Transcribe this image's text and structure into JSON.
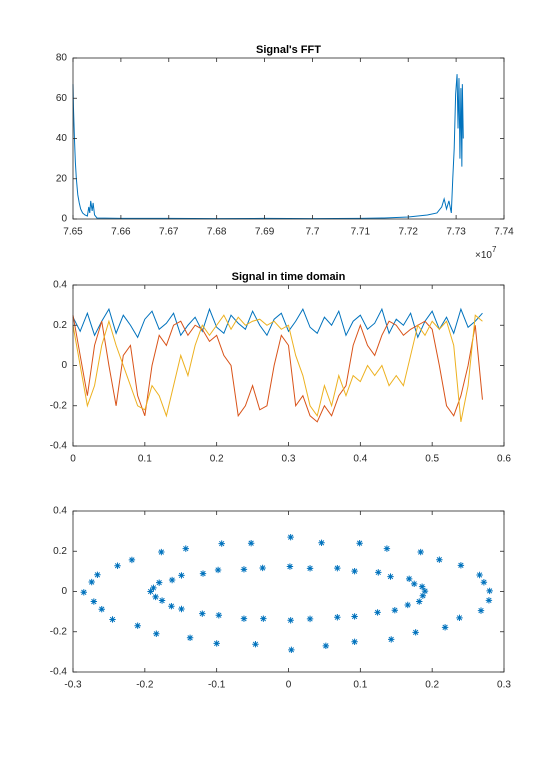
{
  "chart_data": [
    {
      "type": "line",
      "title": "Signal's FFT",
      "xlim": [
        7.65,
        7.74
      ],
      "xticks": [
        7.65,
        7.66,
        7.67,
        7.68,
        7.69,
        7.7,
        7.71,
        7.72,
        7.73,
        7.74
      ],
      "ylim": [
        0,
        80
      ],
      "yticks": [
        0,
        20,
        40,
        60,
        80
      ],
      "x_exponent": {
        "base": "×10",
        "exponent": "7"
      },
      "x": [
        7.65,
        7.6501,
        7.6503,
        7.6505,
        7.6507,
        7.651,
        7.6513,
        7.6516,
        7.652,
        7.6525,
        7.653,
        7.6533,
        7.6535,
        7.6537,
        7.654,
        7.6542,
        7.6545,
        7.655,
        7.66,
        7.67,
        7.68,
        7.69,
        7.7,
        7.71,
        7.715,
        7.72,
        7.722,
        7.724,
        7.726,
        7.727,
        7.7275,
        7.728,
        7.7285,
        7.729,
        7.7293,
        7.7296,
        7.7299,
        7.7302,
        7.7304,
        7.7306,
        7.7308,
        7.731,
        7.7312,
        7.7313,
        7.7315
      ],
      "series": [
        {
          "color": "#0072BD",
          "values": [
            67,
            55,
            40,
            28,
            20,
            12,
            8,
            5,
            3,
            2,
            1.5,
            6,
            3,
            9,
            4,
            8,
            2,
            0.5,
            0.3,
            0.3,
            0.2,
            0.3,
            0.2,
            0.3,
            0.5,
            1,
            1.5,
            2,
            3,
            6,
            10,
            5,
            9,
            3,
            20,
            35,
            62,
            72,
            45,
            70,
            30,
            65,
            26,
            67,
            40
          ]
        }
      ]
    },
    {
      "type": "line",
      "title": "Signal in time domain",
      "xlim": [
        0,
        0.6
      ],
      "xticks": [
        0,
        0.1,
        0.2,
        0.3,
        0.4,
        0.5,
        0.6
      ],
      "ylim": [
        -0.4,
        0.4
      ],
      "yticks": [
        -0.4,
        -0.2,
        0,
        0.2,
        0.4
      ],
      "x": [
        0,
        0.01,
        0.02,
        0.03,
        0.04,
        0.05,
        0.06,
        0.07,
        0.08,
        0.09,
        0.1,
        0.11,
        0.12,
        0.13,
        0.14,
        0.15,
        0.16,
        0.17,
        0.18,
        0.19,
        0.2,
        0.21,
        0.22,
        0.23,
        0.24,
        0.25,
        0.26,
        0.27,
        0.28,
        0.29,
        0.3,
        0.31,
        0.32,
        0.33,
        0.34,
        0.35,
        0.36,
        0.37,
        0.38,
        0.39,
        0.4,
        0.41,
        0.42,
        0.43,
        0.44,
        0.45,
        0.46,
        0.47,
        0.48,
        0.49,
        0.5,
        0.51,
        0.52,
        0.53,
        0.54,
        0.55,
        0.56,
        0.57
      ],
      "series": [
        {
          "color": "#0072BD",
          "values": [
            0.24,
            0.17,
            0.26,
            0.15,
            0.22,
            0.28,
            0.16,
            0.25,
            0.2,
            0.14,
            0.23,
            0.27,
            0.18,
            0.21,
            0.26,
            0.15,
            0.2,
            0.24,
            0.17,
            0.28,
            0.19,
            0.16,
            0.25,
            0.21,
            0.18,
            0.27,
            0.2,
            0.15,
            0.23,
            0.26,
            0.17,
            0.22,
            0.28,
            0.19,
            0.16,
            0.24,
            0.2,
            0.27,
            0.15,
            0.22,
            0.25,
            0.18,
            0.21,
            0.28,
            0.16,
            0.23,
            0.2,
            0.26,
            0.14,
            0.22,
            0.27,
            0.18,
            0.24,
            0.16,
            0.28,
            0.19,
            0.22,
            0.26
          ]
        },
        {
          "color": "#D95319",
          "values": [
            0.25,
            0.05,
            -0.15,
            0.1,
            0.22,
            0.0,
            -0.2,
            0.05,
            0.1,
            -0.15,
            -0.25,
            0.0,
            0.15,
            0.1,
            0.2,
            0.22,
            0.15,
            0.2,
            0.18,
            0.12,
            0.15,
            0.05,
            0.0,
            -0.25,
            -0.2,
            -0.1,
            -0.22,
            -0.2,
            0.0,
            0.15,
            0.1,
            -0.2,
            -0.15,
            -0.25,
            -0.28,
            -0.2,
            -0.25,
            -0.15,
            -0.1,
            0.1,
            0.2,
            0.1,
            0.05,
            0.15,
            0.22,
            0.2,
            0.15,
            0.18,
            0.2,
            0.22,
            0.18,
            0.0,
            -0.2,
            -0.25,
            -0.15,
            0.0,
            0.2,
            -0.17
          ]
        },
        {
          "color": "#EDB120",
          "values": [
            0.2,
            0.0,
            -0.2,
            -0.1,
            0.1,
            0.22,
            0.1,
            0.0,
            -0.1,
            -0.2,
            -0.22,
            -0.1,
            -0.15,
            -0.25,
            -0.1,
            0.05,
            -0.05,
            0.1,
            0.2,
            0.15,
            0.2,
            0.25,
            0.18,
            0.24,
            0.2,
            0.22,
            0.23,
            0.2,
            0.22,
            0.18,
            0.2,
            0.05,
            -0.05,
            -0.2,
            -0.25,
            -0.1,
            -0.2,
            -0.05,
            -0.15,
            -0.05,
            -0.08,
            0.0,
            -0.05,
            0.0,
            -0.1,
            -0.05,
            -0.1,
            0.05,
            0.2,
            0.15,
            0.22,
            0.18,
            0.22,
            0.1,
            -0.28,
            -0.1,
            0.25,
            0.22
          ]
        }
      ]
    },
    {
      "type": "scatter",
      "xlim": [
        -0.3,
        0.3
      ],
      "xticks": [
        -0.3,
        -0.2,
        -0.1,
        0,
        0.1,
        0.2,
        0.3
      ],
      "ylim": [
        -0.4,
        0.4
      ],
      "yticks": [
        -0.4,
        -0.2,
        0,
        0.2,
        0.4
      ],
      "color": "#0072BD",
      "x": [
        0.28,
        0.272,
        0.266,
        0.24,
        0.21,
        0.184,
        0.137,
        0.099,
        0.046,
        0.003,
        -0.052,
        -0.093,
        -0.143,
        -0.177,
        -0.218,
        -0.238,
        -0.266,
        -0.274,
        -0.285,
        -0.271,
        -0.26,
        -0.245,
        -0.21,
        -0.184,
        -0.137,
        -0.1,
        -0.046,
        0.004,
        0.052,
        0.092,
        0.143,
        0.177,
        0.218,
        0.238,
        0.268,
        0.279,
        0.19,
        0.186,
        0.175,
        0.168,
        0.142,
        0.125,
        0.092,
        0.068,
        0.03,
        0.002,
        -0.036,
        -0.062,
        -0.098,
        -0.119,
        -0.149,
        -0.162,
        -0.18,
        -0.188,
        -0.192,
        -0.185,
        -0.176,
        -0.163,
        -0.149,
        -0.12,
        -0.097,
        -0.062,
        -0.035,
        0.003,
        0.03,
        0.068,
        0.092,
        0.124,
        0.148,
        0.166,
        0.182,
        0.187
      ],
      "y": [
        0.003,
        0.046,
        0.082,
        0.13,
        0.158,
        0.196,
        0.213,
        0.24,
        0.242,
        0.27,
        0.24,
        0.238,
        0.213,
        0.196,
        0.157,
        0.128,
        0.083,
        0.047,
        -0.004,
        -0.05,
        -0.088,
        -0.139,
        -0.17,
        -0.21,
        -0.23,
        -0.258,
        -0.262,
        -0.29,
        -0.27,
        -0.25,
        -0.238,
        -0.203,
        -0.178,
        -0.131,
        -0.095,
        -0.044,
        0.002,
        0.024,
        0.038,
        0.063,
        0.074,
        0.095,
        0.101,
        0.116,
        0.115,
        0.124,
        0.117,
        0.11,
        0.107,
        0.089,
        0.08,
        0.057,
        0.044,
        0.018,
        0.0,
        -0.027,
        -0.045,
        -0.073,
        -0.087,
        -0.11,
        -0.118,
        -0.135,
        -0.135,
        -0.143,
        -0.136,
        -0.128,
        -0.124,
        -0.104,
        -0.093,
        -0.067,
        -0.05,
        -0.021
      ]
    }
  ]
}
